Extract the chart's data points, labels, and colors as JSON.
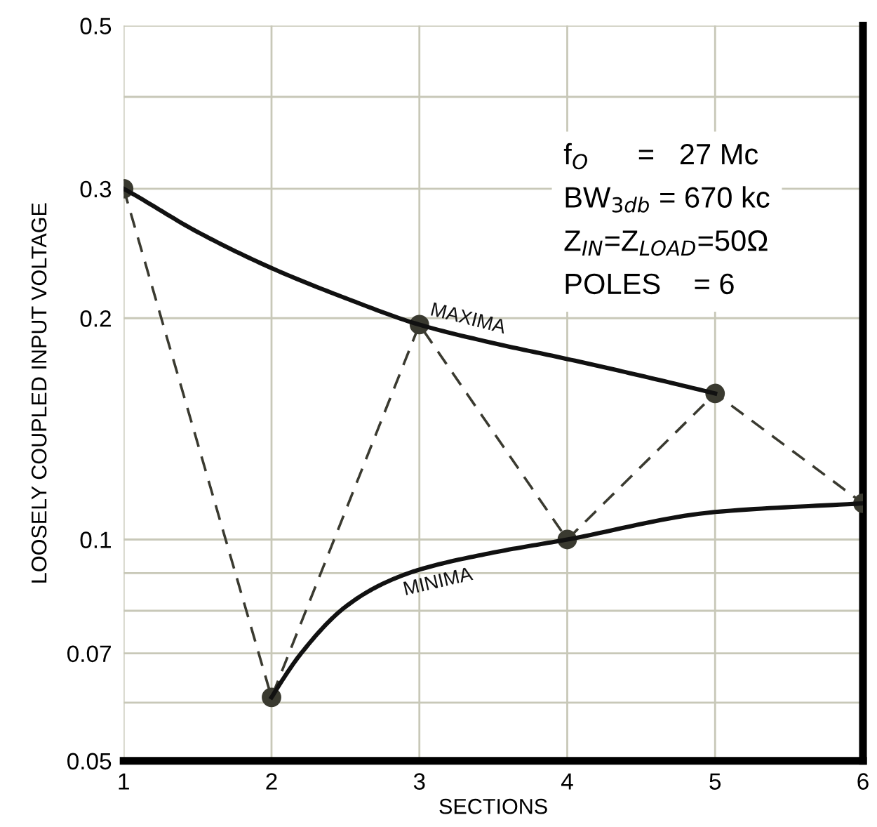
{
  "chart_data": {
    "type": "line",
    "xlabel": "SECTIONS",
    "ylabel": "LOOSELY COUPLED INPUT VOLTAGE",
    "series": [
      {
        "color": "#3a3a30",
        "line_style": "dashed",
        "marker": "circle",
        "x": [
          1,
          2,
          3,
          4,
          5,
          6
        ],
        "values": [
          0.3,
          0.061,
          0.196,
          0.1,
          0.158,
          0.112
        ]
      },
      {
        "name": "MAXIMA",
        "color": "#111111",
        "line_style": "solid",
        "marker": "none",
        "x": [
          1,
          1.5,
          2,
          2.5,
          3,
          3.5,
          4,
          4.5,
          5
        ],
        "values": [
          0.3,
          0.262,
          0.234,
          0.213,
          0.196,
          0.185,
          0.176,
          0.167,
          0.158
        ]
      },
      {
        "name": "MINIMA",
        "color": "#111111",
        "line_style": "solid",
        "marker": "none",
        "x": [
          2,
          2.2,
          2.5,
          2.75,
          3,
          3.5,
          4,
          5,
          6
        ],
        "values": [
          0.061,
          0.07,
          0.081,
          0.087,
          0.091,
          0.096,
          0.1,
          0.109,
          0.112
        ]
      }
    ],
    "log": "y",
    "xlim": [
      1,
      6
    ],
    "xticks": [
      1,
      2,
      3,
      4,
      5,
      6
    ],
    "ylim": [
      0.05,
      0.5
    ],
    "yticks": [
      0.05,
      {
        "value": 0.06,
        "label": null
      },
      0.07,
      {
        "value": 0.08,
        "label": null
      },
      {
        "value": 0.09,
        "label": null
      },
      0.1,
      0.2,
      0.3,
      {
        "value": 0.4,
        "label": null
      },
      0.5
    ],
    "grid": true,
    "legend": false,
    "annotations": [
      "f$_{O}$      =   27 Mc",
      "BW$_{3db}$ = 670 kc",
      "Z$_{IN}$=Z$_{LOAD}$=50Ω",
      "POLES    = 6"
    ]
  }
}
